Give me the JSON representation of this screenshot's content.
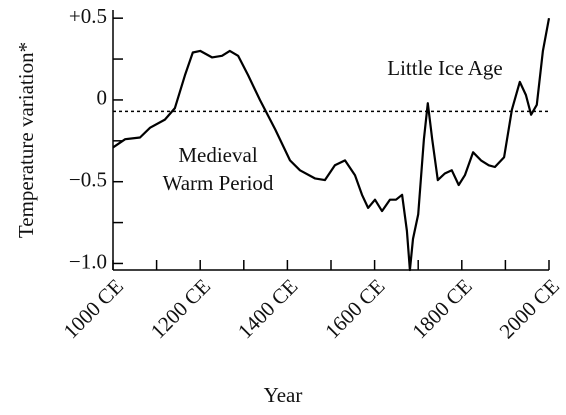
{
  "chart_data": {
    "type": "line",
    "x_label": "Year",
    "y_label": "Temperature variation*",
    "annotations": [
      "Little Ice Age",
      "Medieval",
      "Warm Period"
    ],
    "reference_line": -0.07,
    "color": "#000000",
    "xlim": [
      1000,
      2000
    ],
    "ylim": [
      -1.04,
      0.55
    ],
    "xticks": [
      {
        "value": 1000,
        "label": "1000 CE"
      },
      {
        "value": 1100,
        "label": null
      },
      {
        "value": 1200,
        "label": "1200 CE"
      },
      {
        "value": 1300,
        "label": null
      },
      {
        "value": 1400,
        "label": "1400 CE"
      },
      {
        "value": 1500,
        "label": null
      },
      {
        "value": 1600,
        "label": "1600 CE"
      },
      {
        "value": 1700,
        "label": null
      },
      {
        "value": 1800,
        "label": "1800 CE"
      },
      {
        "value": 1900,
        "label": null
      },
      {
        "value": 2000,
        "label": "2000 CE"
      }
    ],
    "yticks": [
      {
        "value": 0.5,
        "label": "+0.5"
      },
      {
        "value": 0.25,
        "label": null
      },
      0,
      {
        "value": -0.25,
        "label": null
      },
      {
        "value": -0.5,
        "label": "−0.5"
      },
      {
        "value": -0.75,
        "label": null
      },
      {
        "value": -1.0,
        "label": "−1.0"
      }
    ],
    "x": [
      1000,
      1028,
      1062,
      1085,
      1119,
      1142,
      1165,
      1183,
      1200,
      1227,
      1250,
      1268,
      1287,
      1310,
      1337,
      1372,
      1406,
      1429,
      1463,
      1486,
      1509,
      1532,
      1555,
      1571,
      1585,
      1601,
      1617,
      1635,
      1649,
      1663,
      1674,
      1681,
      1688,
      1700,
      1713,
      1722,
      1732,
      1745,
      1761,
      1777,
      1793,
      1807,
      1826,
      1844,
      1862,
      1876,
      1897,
      1915,
      1933,
      1947,
      1959,
      1972,
      1986,
      2000
    ],
    "values": [
      -0.29,
      -0.24,
      -0.23,
      -0.17,
      -0.12,
      -0.05,
      0.15,
      0.29,
      0.3,
      0.26,
      0.27,
      0.3,
      0.27,
      0.15,
      0.0,
      -0.18,
      -0.37,
      -0.43,
      -0.48,
      -0.49,
      -0.4,
      -0.37,
      -0.46,
      -0.58,
      -0.66,
      -0.61,
      -0.68,
      -0.61,
      -0.61,
      -0.58,
      -0.8,
      -1.04,
      -0.85,
      -0.7,
      -0.24,
      -0.02,
      -0.24,
      -0.49,
      -0.45,
      -0.43,
      -0.52,
      -0.46,
      -0.32,
      -0.37,
      -0.4,
      -0.41,
      -0.35,
      -0.06,
      0.11,
      0.03,
      -0.09,
      -0.03,
      0.3,
      0.5
    ]
  }
}
